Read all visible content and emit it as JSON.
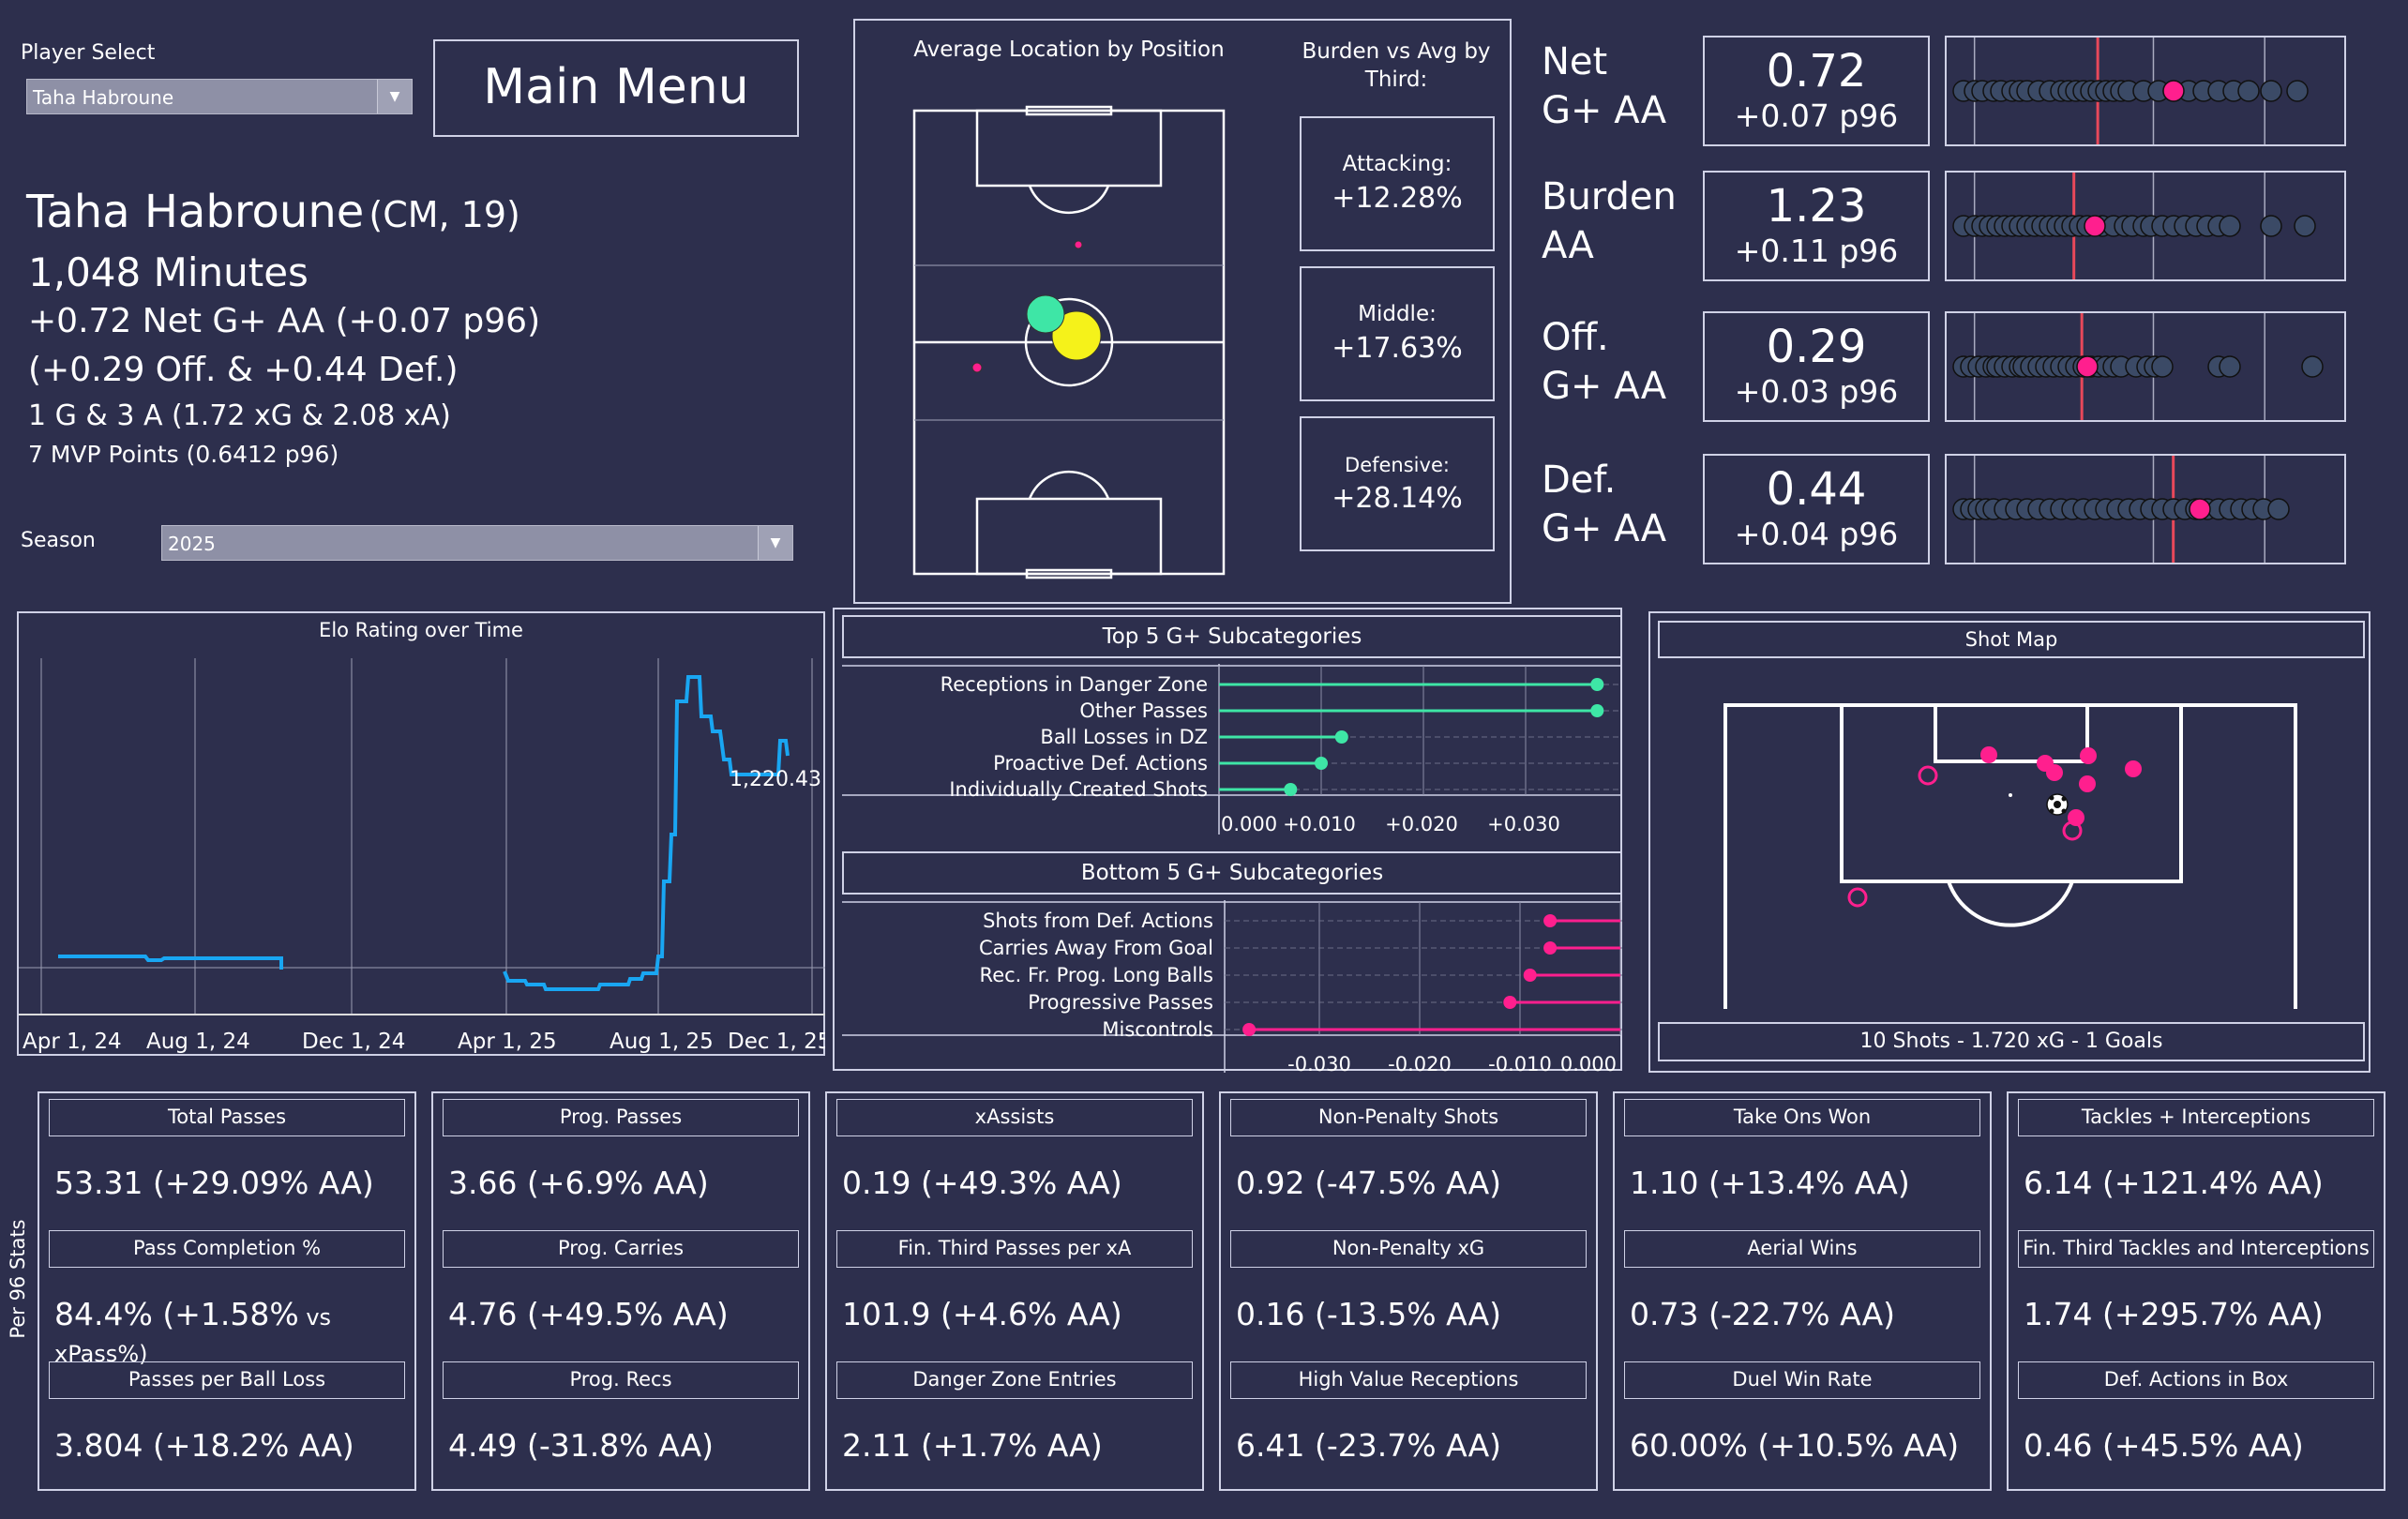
{
  "player_select": {
    "label": "Player Select",
    "value": "Taha Habroune"
  },
  "main_menu": "Main Menu",
  "profile": {
    "name": "Taha Habroune",
    "pos_age": "(CM, 19)",
    "minutes": "1,048 Minutes",
    "net_line": "+0.72 Net G+ AA (+0.07 p96)",
    "split_line": "(+0.29 Off. & +0.44 Def.)",
    "goals_line": "1 G & 3 A (1.72 xG & 2.08 xA)",
    "mvp_line": "7 MVP Points (0.6412 p96)"
  },
  "season": {
    "label": "Season",
    "value": "2025"
  },
  "avg_location": {
    "title": "Average Location by Position"
  },
  "burden": {
    "title": "Burden vs Avg by Third:",
    "items": [
      {
        "label": "Attacking:",
        "value": "+12.28%"
      },
      {
        "label": "Middle:",
        "value": "+17.63%"
      },
      {
        "label": "Defensive:",
        "value": "+28.14%"
      }
    ]
  },
  "metrics": [
    {
      "label1": "Net",
      "label2": "G+ AA",
      "value": "0.72",
      "sub": "+0.07 p96",
      "pct": 0.58
    },
    {
      "label1": "Burden",
      "label2": "AA",
      "value": "1.23",
      "sub": "+0.11 p96",
      "pct": 0.37
    },
    {
      "label1": "Off.",
      "label2": "G+ AA",
      "value": "0.29",
      "sub": "+0.03 p96",
      "pct": 0.35
    },
    {
      "label1": "Def.",
      "label2": "G+ AA",
      "value": "0.44",
      "sub": "+0.04 p96",
      "pct": 0.65
    }
  ],
  "elo": {
    "title": "Elo Rating over Time",
    "last_label": "1,220.43",
    "xticks": [
      "Apr 1, 24",
      "Aug 1, 24",
      "Dec 1, 24",
      "Apr 1, 25",
      "Aug 1, 25",
      "Dec 1, 25"
    ]
  },
  "top5": {
    "title": "Top 5 G+ Subcategories",
    "items": [
      {
        "label": "Receptions in Danger Zone",
        "value": 0.037
      },
      {
        "label": "Other Passes",
        "value": 0.037
      },
      {
        "label": "Ball Losses in DZ",
        "value": 0.012
      },
      {
        "label": "Proactive Def. Actions",
        "value": 0.01
      },
      {
        "label": "Individually Created Shots",
        "value": 0.007
      }
    ],
    "ticks": [
      "0.000",
      "+0.010",
      "+0.020",
      "+0.030"
    ]
  },
  "bottom5": {
    "title": "Bottom 5 G+ Subcategories",
    "items": [
      {
        "label": "Shots from Def. Actions",
        "value": -0.007
      },
      {
        "label": "Carries Away From Goal",
        "value": -0.007
      },
      {
        "label": "Rec. Fr. Prog. Long Balls",
        "value": -0.009
      },
      {
        "label": "Progressive Passes",
        "value": -0.011
      },
      {
        "label": "Miscontrols",
        "value": -0.037
      }
    ],
    "ticks": [
      "-0.030",
      "-0.020",
      "-0.010",
      "0.000"
    ]
  },
  "shot_map": {
    "title": "Shot Map",
    "footer": "10 Shots - 1.720 xG - 1 Goals"
  },
  "per96_label": "Per 96 Stats",
  "stats": [
    [
      {
        "h": "Total Passes",
        "v": "53.31 (+29.09% AA)"
      },
      {
        "h": "Pass Completion %",
        "v": "84.4% (+1.58%",
        "s": " vs xPass%)"
      },
      {
        "h": "Passes per Ball Loss",
        "v": "3.804 (+18.2% AA)"
      }
    ],
    [
      {
        "h": "Prog. Passes",
        "v": "3.66 (+6.9% AA)"
      },
      {
        "h": "Prog. Carries",
        "v": "4.76 (+49.5% AA)"
      },
      {
        "h": "Prog. Recs",
        "v": "4.49 (-31.8% AA)"
      }
    ],
    [
      {
        "h": "xAssists",
        "v": "0.19 (+49.3% AA)"
      },
      {
        "h": "Fin. Third Passes per xA",
        "v": "101.9 (+4.6% AA)"
      },
      {
        "h": "Danger Zone Entries",
        "v": "2.11 (+1.7% AA)"
      }
    ],
    [
      {
        "h": "Non-Penalty Shots",
        "v": "0.92 (-47.5% AA)"
      },
      {
        "h": "Non-Penalty xG",
        "v": "0.16 (-13.5% AA)"
      },
      {
        "h": "High Value Receptions",
        "v": "6.41 (-23.7% AA)"
      }
    ],
    [
      {
        "h": "Take Ons Won",
        "v": "1.10 (+13.4% AA)"
      },
      {
        "h": "Aerial Wins",
        "v": "0.73 (-22.7% AA)"
      },
      {
        "h": "Duel Win Rate",
        "v": "60.00% (+10.5% AA)"
      }
    ],
    [
      {
        "h": "Tackles + Interceptions",
        "v": "6.14 (+121.4% AA)"
      },
      {
        "h": "Fin. Third Tackles and Interceptions",
        "v": "1.74 (+295.7% AA)"
      },
      {
        "h": "Def. Actions in Box",
        "v": "0.46 (+45.5% AA)"
      }
    ]
  ],
  "colors": {
    "bg": "#2d2f4d",
    "pink": "#ff1f8e",
    "green": "#3ee6a6",
    "blue": "#19a6f2",
    "yellow": "#f5f21a",
    "red": "#e8485a",
    "dot": "#3b4a66"
  }
}
